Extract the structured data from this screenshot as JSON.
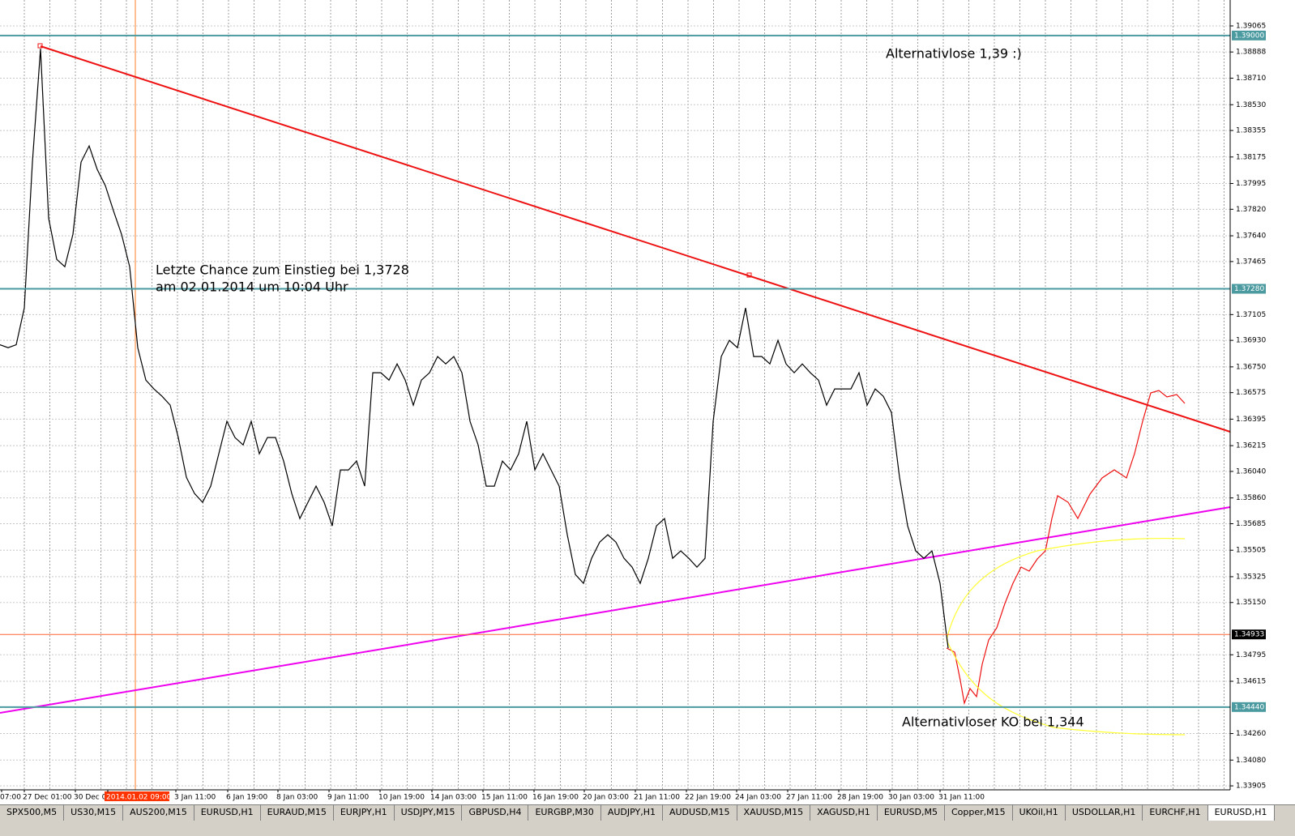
{
  "chart_data": {
    "type": "line",
    "color": "#000000",
    "values": [
      1.369,
      1.3688,
      1.369,
      1.3715,
      1.3814,
      1.3891,
      1.3776,
      1.3748,
      1.3743,
      1.3765,
      1.3814,
      1.3825,
      1.3809,
      1.3798,
      1.3781,
      1.3765,
      1.3743,
      1.3688,
      1.3666,
      1.366,
      1.3655,
      1.3649,
      1.3627,
      1.36,
      1.3589,
      1.3583,
      1.3594,
      1.3616,
      1.3638,
      1.3627,
      1.3622,
      1.3638,
      1.3616,
      1.3627,
      1.3627,
      1.3611,
      1.3589,
      1.3572,
      1.3583,
      1.3594,
      1.3583,
      1.3567,
      1.3605,
      1.3605,
      1.3611,
      1.3594,
      1.3671,
      1.3671,
      1.3666,
      1.3677,
      1.3666,
      1.3649,
      1.3666,
      1.3671,
      1.3682,
      1.3677,
      1.3682,
      1.3671,
      1.3638,
      1.3622,
      1.3594,
      1.3594,
      1.3611,
      1.3605,
      1.3616,
      1.3638,
      1.3605,
      1.3616,
      1.3605,
      1.3594,
      1.3561,
      1.3534,
      1.3528,
      1.3545,
      1.3556,
      1.3561,
      1.3556,
      1.3545,
      1.3539,
      1.3528,
      1.3545,
      1.3567,
      1.3572,
      1.3545,
      1.355,
      1.3545,
      1.3539,
      1.3545,
      1.3638,
      1.3682,
      1.3693,
      1.3688,
      1.3715,
      1.3682,
      1.3682,
      1.3677,
      1.3693,
      1.3677,
      1.3671,
      1.3677,
      1.3671,
      1.3666,
      1.3649,
      1.366,
      1.366,
      1.366,
      1.3671,
      1.3649,
      1.366,
      1.3655,
      1.3644,
      1.36,
      1.3567,
      1.355,
      1.3545,
      1.355,
      1.3528,
      1.3484
    ],
    "ylim": [
      1.33878,
      1.39241
    ],
    "yticks": [
      1.39065,
      1.38888,
      {
        "value": 1.3871,
        "label": "1.38710"
      },
      {
        "value": 1.3853,
        "label": "1.38530"
      },
      1.38355,
      1.38175,
      1.37995,
      {
        "value": 1.3782,
        "label": "1.37820"
      },
      {
        "value": 1.3764,
        "label": "1.37640"
      },
      1.37465,
      1.37105,
      {
        "value": 1.3693,
        "label": "1.36930"
      },
      {
        "value": 1.3675,
        "label": "1.36750"
      },
      1.36575,
      1.36395,
      1.36215,
      {
        "value": 1.3604,
        "label": "1.36040"
      },
      {
        "value": 1.3586,
        "label": "1.35860"
      },
      1.35685,
      1.35505,
      1.35325,
      {
        "value": 1.3515,
        "label": "1.35150"
      },
      1.34795,
      1.34615,
      {
        "value": 1.3426,
        "label": "1.34260"
      },
      {
        "value": 1.3408,
        "label": "1.34080"
      },
      1.33905
    ],
    "grid": true,
    "levels": [
      {
        "value": 1.39,
        "label": "1.39000"
      },
      {
        "value": 1.3728,
        "label": "1.37280"
      },
      {
        "value": 1.3444,
        "label": "1.34440"
      }
    ],
    "current_price": {
      "value": 1.34933,
      "label": "1.34933"
    },
    "time_labels": [
      "07:00",
      "27 Dec 01:00",
      "30 Dec 0",
      "2014.01.02 09:00",
      "3 Jan 11:00",
      "6 Jan 19:00",
      "8 Jan 03:00",
      "9 Jan 11:00",
      "10 Jan 19:00",
      "14 Jan 03:00",
      "15 Jan 11:00",
      "16 Jan 19:00",
      "20 Jan 03:00",
      "21 Jan 11:00",
      "22 Jan 19:00",
      "24 Jan 03:00",
      "27 Jan 11:00",
      "28 Jan 19:00",
      "30 Jan 03:00",
      "31 Jan 11:00"
    ],
    "annotations": [
      "Alternativlose 1,39 :)",
      "Letzte Chance zum Einstieg bei 1,3728",
      "am 02.01.2014 um 10:04 Uhr",
      "Alternativloser KO bei 1,344"
    ]
  },
  "tabs": [
    "SPX500,M5",
    "US30,M15",
    "AUS200,M15",
    "EURUSD,H1",
    "EURAUD,M15",
    "EURJPY,H1",
    "USDJPY,M15",
    "GBPUSD,H4",
    "EURGBP,M30",
    "AUDJPY,H1",
    "AUDUSD,M15",
    "XAUUSD,M15",
    "XAGUSD,H1",
    "EURUSD,M5",
    "Copper,M15",
    "UKOil,H1",
    "USDOLLAR,H1",
    "EURCHF,H1",
    "EURUSD,H1"
  ]
}
